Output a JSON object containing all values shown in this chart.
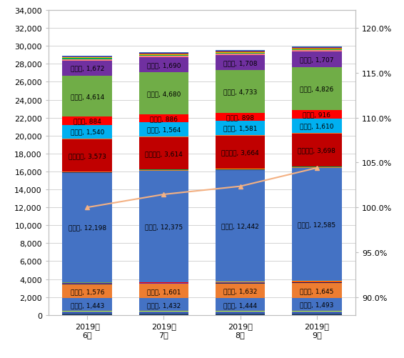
{
  "months": [
    "2019年\n6月",
    "2019年\n7月",
    "2019年\n8月",
    "2019年\n9月"
  ],
  "segments": [
    {
      "name": "bot_darkblue",
      "values": [
        120,
        120,
        120,
        120
      ],
      "color": "#203864",
      "labeled": false
    },
    {
      "name": "bot_blue2",
      "values": [
        80,
        80,
        80,
        80
      ],
      "color": "#2E75B6",
      "labeled": false
    },
    {
      "name": "bot_purple",
      "values": [
        60,
        60,
        60,
        60
      ],
      "color": "#7030A0",
      "labeled": false
    },
    {
      "name": "bot_red",
      "values": [
        50,
        50,
        50,
        50
      ],
      "color": "#FF0000",
      "labeled": false
    },
    {
      "name": "bot_cyan",
      "values": [
        40,
        40,
        40,
        40
      ],
      "color": "#00B0F0",
      "labeled": false
    },
    {
      "name": "bot_green",
      "values": [
        30,
        30,
        30,
        30
      ],
      "color": "#70AD47",
      "labeled": false
    },
    {
      "name": "bot_orange",
      "values": [
        25,
        25,
        25,
        25
      ],
      "color": "#ED7D31",
      "labeled": false
    },
    {
      "name": "bot_yellow",
      "values": [
        20,
        20,
        20,
        20
      ],
      "color": "#FFC000",
      "labeled": false
    },
    {
      "name": "埼玉県",
      "values": [
        1443,
        1432,
        1444,
        1493
      ],
      "color": "#4472C4",
      "labeled": true,
      "label_name": "埼玉県",
      "label_vals": [
        1443,
        1432,
        1444,
        1493
      ]
    },
    {
      "name": "千葉県",
      "values": [
        1576,
        1601,
        1632,
        1645
      ],
      "color": "#ED7D31",
      "labeled": true,
      "label_name": "千葉県",
      "label_vals": [
        1576,
        1601,
        1632,
        1645
      ]
    },
    {
      "name": "mid_darkblue",
      "values": [
        60,
        60,
        60,
        60
      ],
      "color": "#203864",
      "labeled": false
    },
    {
      "name": "mid_purple",
      "values": [
        50,
        50,
        50,
        50
      ],
      "color": "#7030A0",
      "labeled": false
    },
    {
      "name": "mid_red",
      "values": [
        40,
        40,
        40,
        40
      ],
      "color": "#FF0000",
      "labeled": false
    },
    {
      "name": "mid_green",
      "values": [
        30,
        30,
        30,
        30
      ],
      "color": "#70AD47",
      "labeled": false
    },
    {
      "name": "mid_yellow",
      "values": [
        25,
        25,
        25,
        25
      ],
      "color": "#FFC000",
      "labeled": false
    },
    {
      "name": "mid_teal",
      "values": [
        20,
        20,
        20,
        20
      ],
      "color": "#00B050",
      "labeled": false
    },
    {
      "name": "東京都",
      "values": [
        12198,
        12375,
        12442,
        12585
      ],
      "color": "#4472C4",
      "labeled": true,
      "label_name": "東京都",
      "label_vals": [
        12198,
        12375,
        12442,
        12585
      ]
    },
    {
      "name": "above_darkblue",
      "values": [
        50,
        50,
        50,
        50
      ],
      "color": "#203864",
      "labeled": false
    },
    {
      "name": "above_orange",
      "values": [
        40,
        40,
        40,
        40
      ],
      "color": "#ED7D31",
      "labeled": false
    },
    {
      "name": "above_yellow",
      "values": [
        30,
        30,
        30,
        30
      ],
      "color": "#FFC000",
      "labeled": false
    },
    {
      "name": "above_teal",
      "values": [
        25,
        25,
        25,
        25
      ],
      "color": "#00B050",
      "labeled": false
    },
    {
      "name": "神奈川県",
      "values": [
        3573,
        3614,
        3664,
        3698
      ],
      "color": "#C00000",
      "labeled": true,
      "label_name": "神奈川県",
      "label_vals": [
        3573,
        3614,
        3664,
        3698
      ]
    },
    {
      "name": "kng_orange",
      "values": [
        50,
        50,
        50,
        50
      ],
      "color": "#ED7D31",
      "labeled": false
    },
    {
      "name": "kng_yellow",
      "values": [
        40,
        40,
        40,
        40
      ],
      "color": "#FFC000",
      "labeled": false
    },
    {
      "name": "愛知県",
      "values": [
        1540,
        1564,
        1581,
        1610
      ],
      "color": "#00B0F0",
      "labeled": true,
      "label_name": "愛知県",
      "label_vals": [
        1540,
        1564,
        1581,
        1610
      ]
    },
    {
      "name": "京都府",
      "values": [
        884,
        886,
        898,
        916
      ],
      "color": "#FF0000",
      "labeled": true,
      "label_name": "京都府",
      "label_vals": [
        884,
        886,
        898,
        916
      ]
    },
    {
      "name": "大阪府",
      "values": [
        4614,
        4680,
        4733,
        4826
      ],
      "color": "#70AD47",
      "labeled": true,
      "label_name": "大阪府",
      "label_vals": [
        4614,
        4680,
        4733,
        4826
      ]
    },
    {
      "name": "兵庫県",
      "values": [
        1672,
        1690,
        1708,
        1707
      ],
      "color": "#7030A0",
      "labeled": true,
      "label_name": "兵庫県",
      "label_vals": [
        1672,
        1690,
        1708,
        1707
      ]
    },
    {
      "name": "top_pink",
      "values": [
        150,
        160,
        155,
        158
      ],
      "color": "#FF7C80",
      "labeled": false
    },
    {
      "name": "top_teal",
      "values": [
        100,
        110,
        105,
        108
      ],
      "color": "#00B050",
      "labeled": false
    },
    {
      "name": "top_yellow",
      "values": [
        80,
        85,
        82,
        84
      ],
      "color": "#FFC000",
      "labeled": false
    },
    {
      "name": "top_brown",
      "values": [
        60,
        65,
        62,
        63
      ],
      "color": "#9E480E",
      "labeled": false
    },
    {
      "name": "top_purple2",
      "values": [
        50,
        55,
        52,
        53
      ],
      "color": "#7030A0",
      "labeled": false
    },
    {
      "name": "top_red2",
      "values": [
        40,
        42,
        41,
        41
      ],
      "color": "#FF0000",
      "labeled": false
    },
    {
      "name": "top_blue2",
      "values": [
        30,
        32,
        31,
        31
      ],
      "color": "#2E75B6",
      "labeled": false
    },
    {
      "name": "top_cyan2",
      "values": [
        25,
        27,
        26,
        26
      ],
      "color": "#00B0F0",
      "labeled": false
    },
    {
      "name": "top_green2",
      "values": [
        20,
        22,
        21,
        21
      ],
      "color": "#70AD47",
      "labeled": false
    }
  ],
  "line_values": [
    100.0,
    101.45,
    102.35,
    104.4
  ],
  "ylim_left": [
    0,
    34000
  ],
  "ylim_right": [
    88.0,
    122.0
  ],
  "yticks_left": [
    0,
    2000,
    4000,
    6000,
    8000,
    10000,
    12000,
    14000,
    16000,
    18000,
    20000,
    22000,
    24000,
    26000,
    28000,
    30000,
    32000,
    34000
  ],
  "yticks_right": [
    90.0,
    95.0,
    100.0,
    105.0,
    110.0,
    115.0,
    120.0
  ],
  "bar_width": 0.65,
  "background_color": "#FFFFFF",
  "grid_color": "#D3D3D3"
}
